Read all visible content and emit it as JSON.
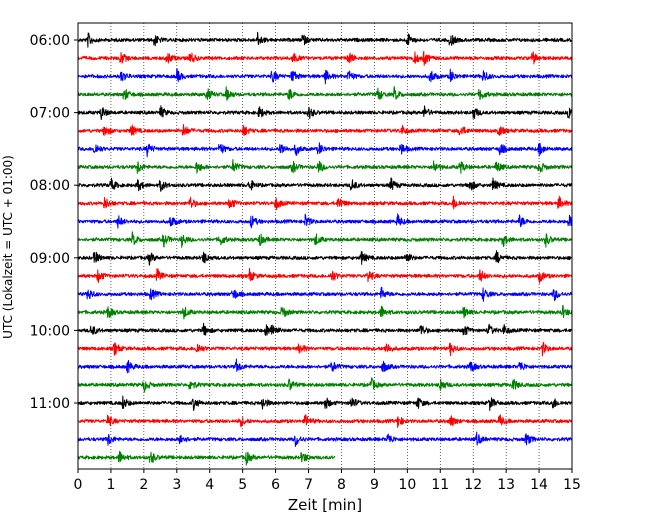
{
  "chart_data": {
    "type": "line",
    "chart_kind": "helicorder",
    "xlabel": "Zeit  [min]",
    "ylabel": "UTC (Lokalzeit = UTC + 01:00)",
    "xlim": [
      0,
      15
    ],
    "x_ticks": [
      "0",
      "1",
      "2",
      "3",
      "4",
      "5",
      "6",
      "7",
      "8",
      "9",
      "10",
      "11",
      "12",
      "13",
      "14",
      "15"
    ],
    "y_ticks": [
      "06:00",
      "07:00",
      "08:00",
      "09:00",
      "10:00",
      "11:00"
    ],
    "rows_per_hour": 4,
    "minutes_per_row": 15,
    "start_time": "06:00",
    "trace_colors": [
      "#000000",
      "#ff0000",
      "#0000ff",
      "#008000"
    ],
    "x_grid": "dotted vertical lines at each minute",
    "rows": [
      {
        "start": "06:00",
        "color": "#000000",
        "events": [
          0.3,
          2.3,
          5.45,
          6.8,
          10.0,
          11.3
        ]
      },
      {
        "start": "06:15",
        "color": "#ff0000",
        "events": [
          1.3,
          2.7,
          3.4,
          6.5,
          8.2,
          10.2,
          10.5,
          13.8
        ]
      },
      {
        "start": "06:30",
        "color": "#0000ff",
        "events": [
          1.3,
          3.0,
          5.9,
          6.5,
          7.5,
          8.2,
          10.7,
          11.3,
          12.3
        ]
      },
      {
        "start": "06:45",
        "color": "#008000",
        "events": [
          1.4,
          3.9,
          4.5,
          6.4,
          9.1,
          9.6,
          12.2
        ]
      },
      {
        "start": "07:00",
        "color": "#000000",
        "events": [
          0.7,
          2.5,
          5.5,
          7.0,
          10.5,
          12.0,
          14.9
        ]
      },
      {
        "start": "07:15",
        "color": "#ff0000",
        "events": [
          0.8,
          1.6,
          3.2,
          5.0,
          9.8,
          11.6,
          12.75
        ]
      },
      {
        "start": "07:30",
        "color": "#0000ff",
        "events": [
          0.5,
          2.1,
          4.3,
          6.15,
          6.6,
          7.3,
          9.8,
          12.8,
          14.0
        ]
      },
      {
        "start": "07:45",
        "color": "#008000",
        "events": [
          1.8,
          3.6,
          4.7,
          6.5,
          7.3,
          10.8,
          11.6,
          12.7,
          14.0
        ]
      },
      {
        "start": "08:00",
        "color": "#000000",
        "events": [
          1.0,
          1.8,
          2.5,
          5.2,
          8.3,
          9.5,
          11.9,
          12.6
        ]
      },
      {
        "start": "08:15",
        "color": "#ff0000",
        "events": [
          0.8,
          3.4,
          4.6,
          6.0,
          7.9,
          11.4,
          14.6
        ]
      },
      {
        "start": "08:30",
        "color": "#0000ff",
        "events": [
          1.2,
          2.8,
          5.25,
          6.9,
          9.7,
          13.4,
          14.9
        ]
      },
      {
        "start": "08:45",
        "color": "#008000",
        "events": [
          1.65,
          2.6,
          3.15,
          4.3,
          5.5,
          7.2,
          12.9,
          14.2
        ]
      },
      {
        "start": "09:00",
        "color": "#000000",
        "events": [
          0.5,
          2.15,
          3.8,
          8.6,
          9.95,
          12.7
        ]
      },
      {
        "start": "09:15",
        "color": "#ff0000",
        "events": [
          0.6,
          2.4,
          5.2,
          7.7,
          8.8,
          12.2,
          14.0
        ]
      },
      {
        "start": "09:30",
        "color": "#0000ff",
        "events": [
          0.3,
          2.2,
          4.7,
          9.2,
          12.3,
          14.45
        ]
      },
      {
        "start": "09:45",
        "color": "#008000",
        "events": [
          0.9,
          3.2,
          6.2,
          9.2,
          11.7,
          14.7
        ]
      },
      {
        "start": "10:00",
        "color": "#000000",
        "events": [
          0.4,
          3.8,
          5.7,
          5.9,
          10.4,
          11.7,
          12.45,
          12.9
        ]
      },
      {
        "start": "10:15",
        "color": "#ff0000",
        "events": [
          1.1,
          3.6,
          6.7,
          9.35,
          11.3,
          14.1
        ]
      },
      {
        "start": "10:30",
        "color": "#0000ff",
        "events": [
          1.5,
          4.8,
          7.7,
          9.25,
          11.9,
          13.4
        ]
      },
      {
        "start": "10:45",
        "color": "#008000",
        "events": [
          2.0,
          3.4,
          6.4,
          8.9,
          11.0,
          13.2
        ]
      },
      {
        "start": "11:00",
        "color": "#000000",
        "events": [
          1.35,
          3.5,
          5.6,
          7.5,
          8.3,
          10.3,
          12.5,
          14.4
        ]
      },
      {
        "start": "11:15",
        "color": "#ff0000",
        "events": [
          0.9,
          4.9,
          6.9,
          9.7,
          11.3,
          12.8
        ]
      },
      {
        "start": "11:30",
        "color": "#0000ff",
        "events": [
          0.9,
          3.1,
          6.6,
          9.4,
          12.1,
          13.6
        ]
      },
      {
        "start": "11:45",
        "color": "#008000",
        "events": [
          1.25,
          2.2,
          5.1,
          6.8
        ],
        "end": 7.8
      }
    ]
  }
}
